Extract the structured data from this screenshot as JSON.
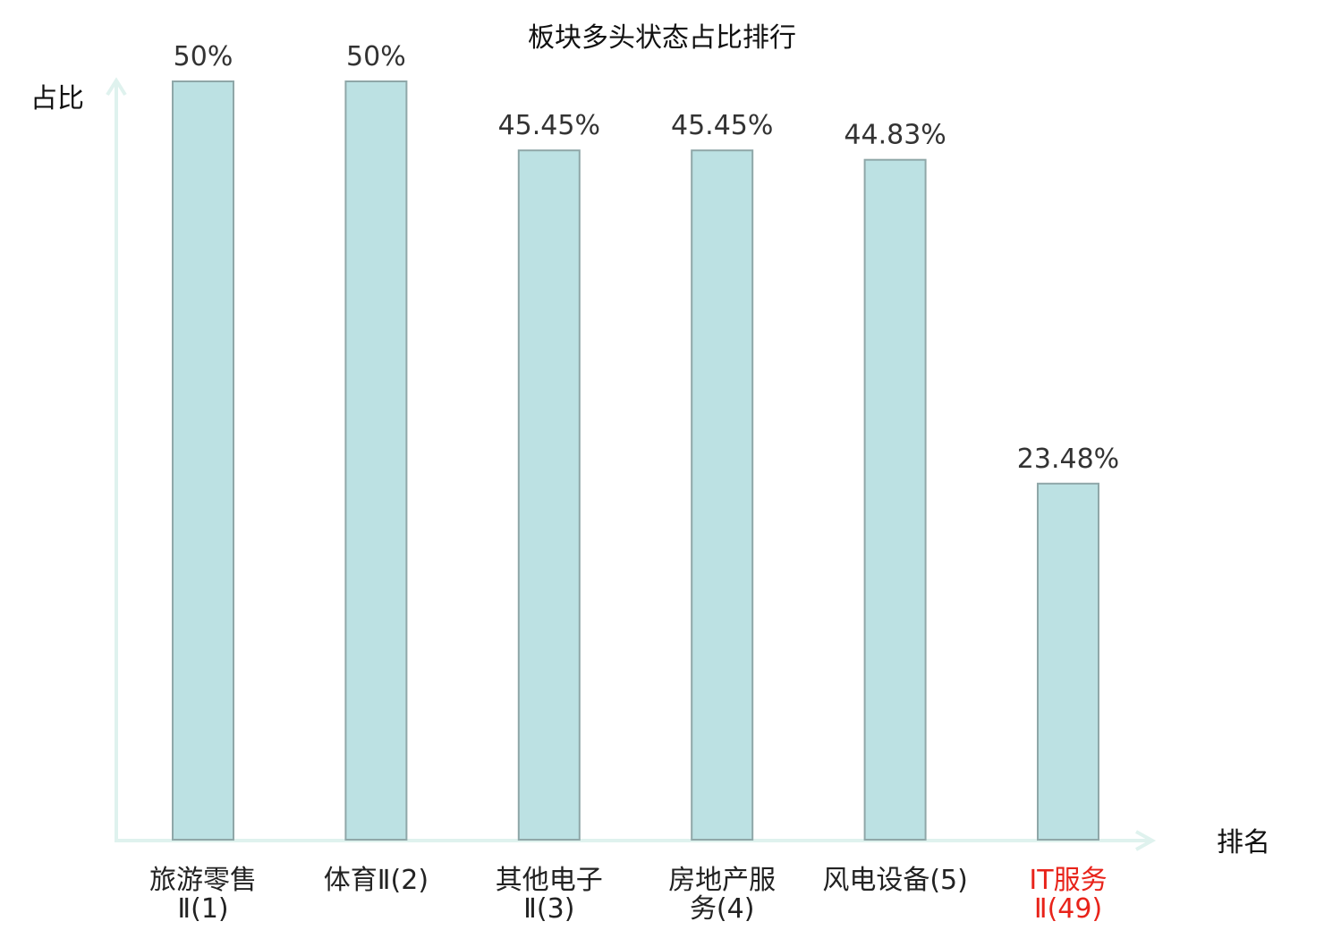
{
  "chart_data": {
    "type": "bar",
    "title": "板块多头状态占比排行",
    "ylabel": "占比",
    "xlabel": "排名",
    "categories": [
      [
        "旅游零售",
        "Ⅱ(1)"
      ],
      [
        "体育Ⅱ(2)"
      ],
      [
        "其他电子",
        "Ⅱ(3)"
      ],
      [
        "房地产服",
        "务(4)"
      ],
      [
        "风电设备(5)"
      ],
      [
        "IT服务",
        "Ⅱ(49)"
      ]
    ],
    "values": [
      50,
      50,
      45.45,
      45.45,
      44.83,
      23.48
    ],
    "value_labels": [
      "50%",
      "50%",
      "45.45%",
      "45.45%",
      "44.83%",
      "23.48%"
    ],
    "highlight_index": 5,
    "ylim": [
      0,
      50
    ],
    "grid": false,
    "colors": {
      "bar_fill": "#bce1e3",
      "bar_stroke": "#8fa7a8",
      "axis": "#dff2ee",
      "highlight_text": "#e8231a"
    }
  }
}
